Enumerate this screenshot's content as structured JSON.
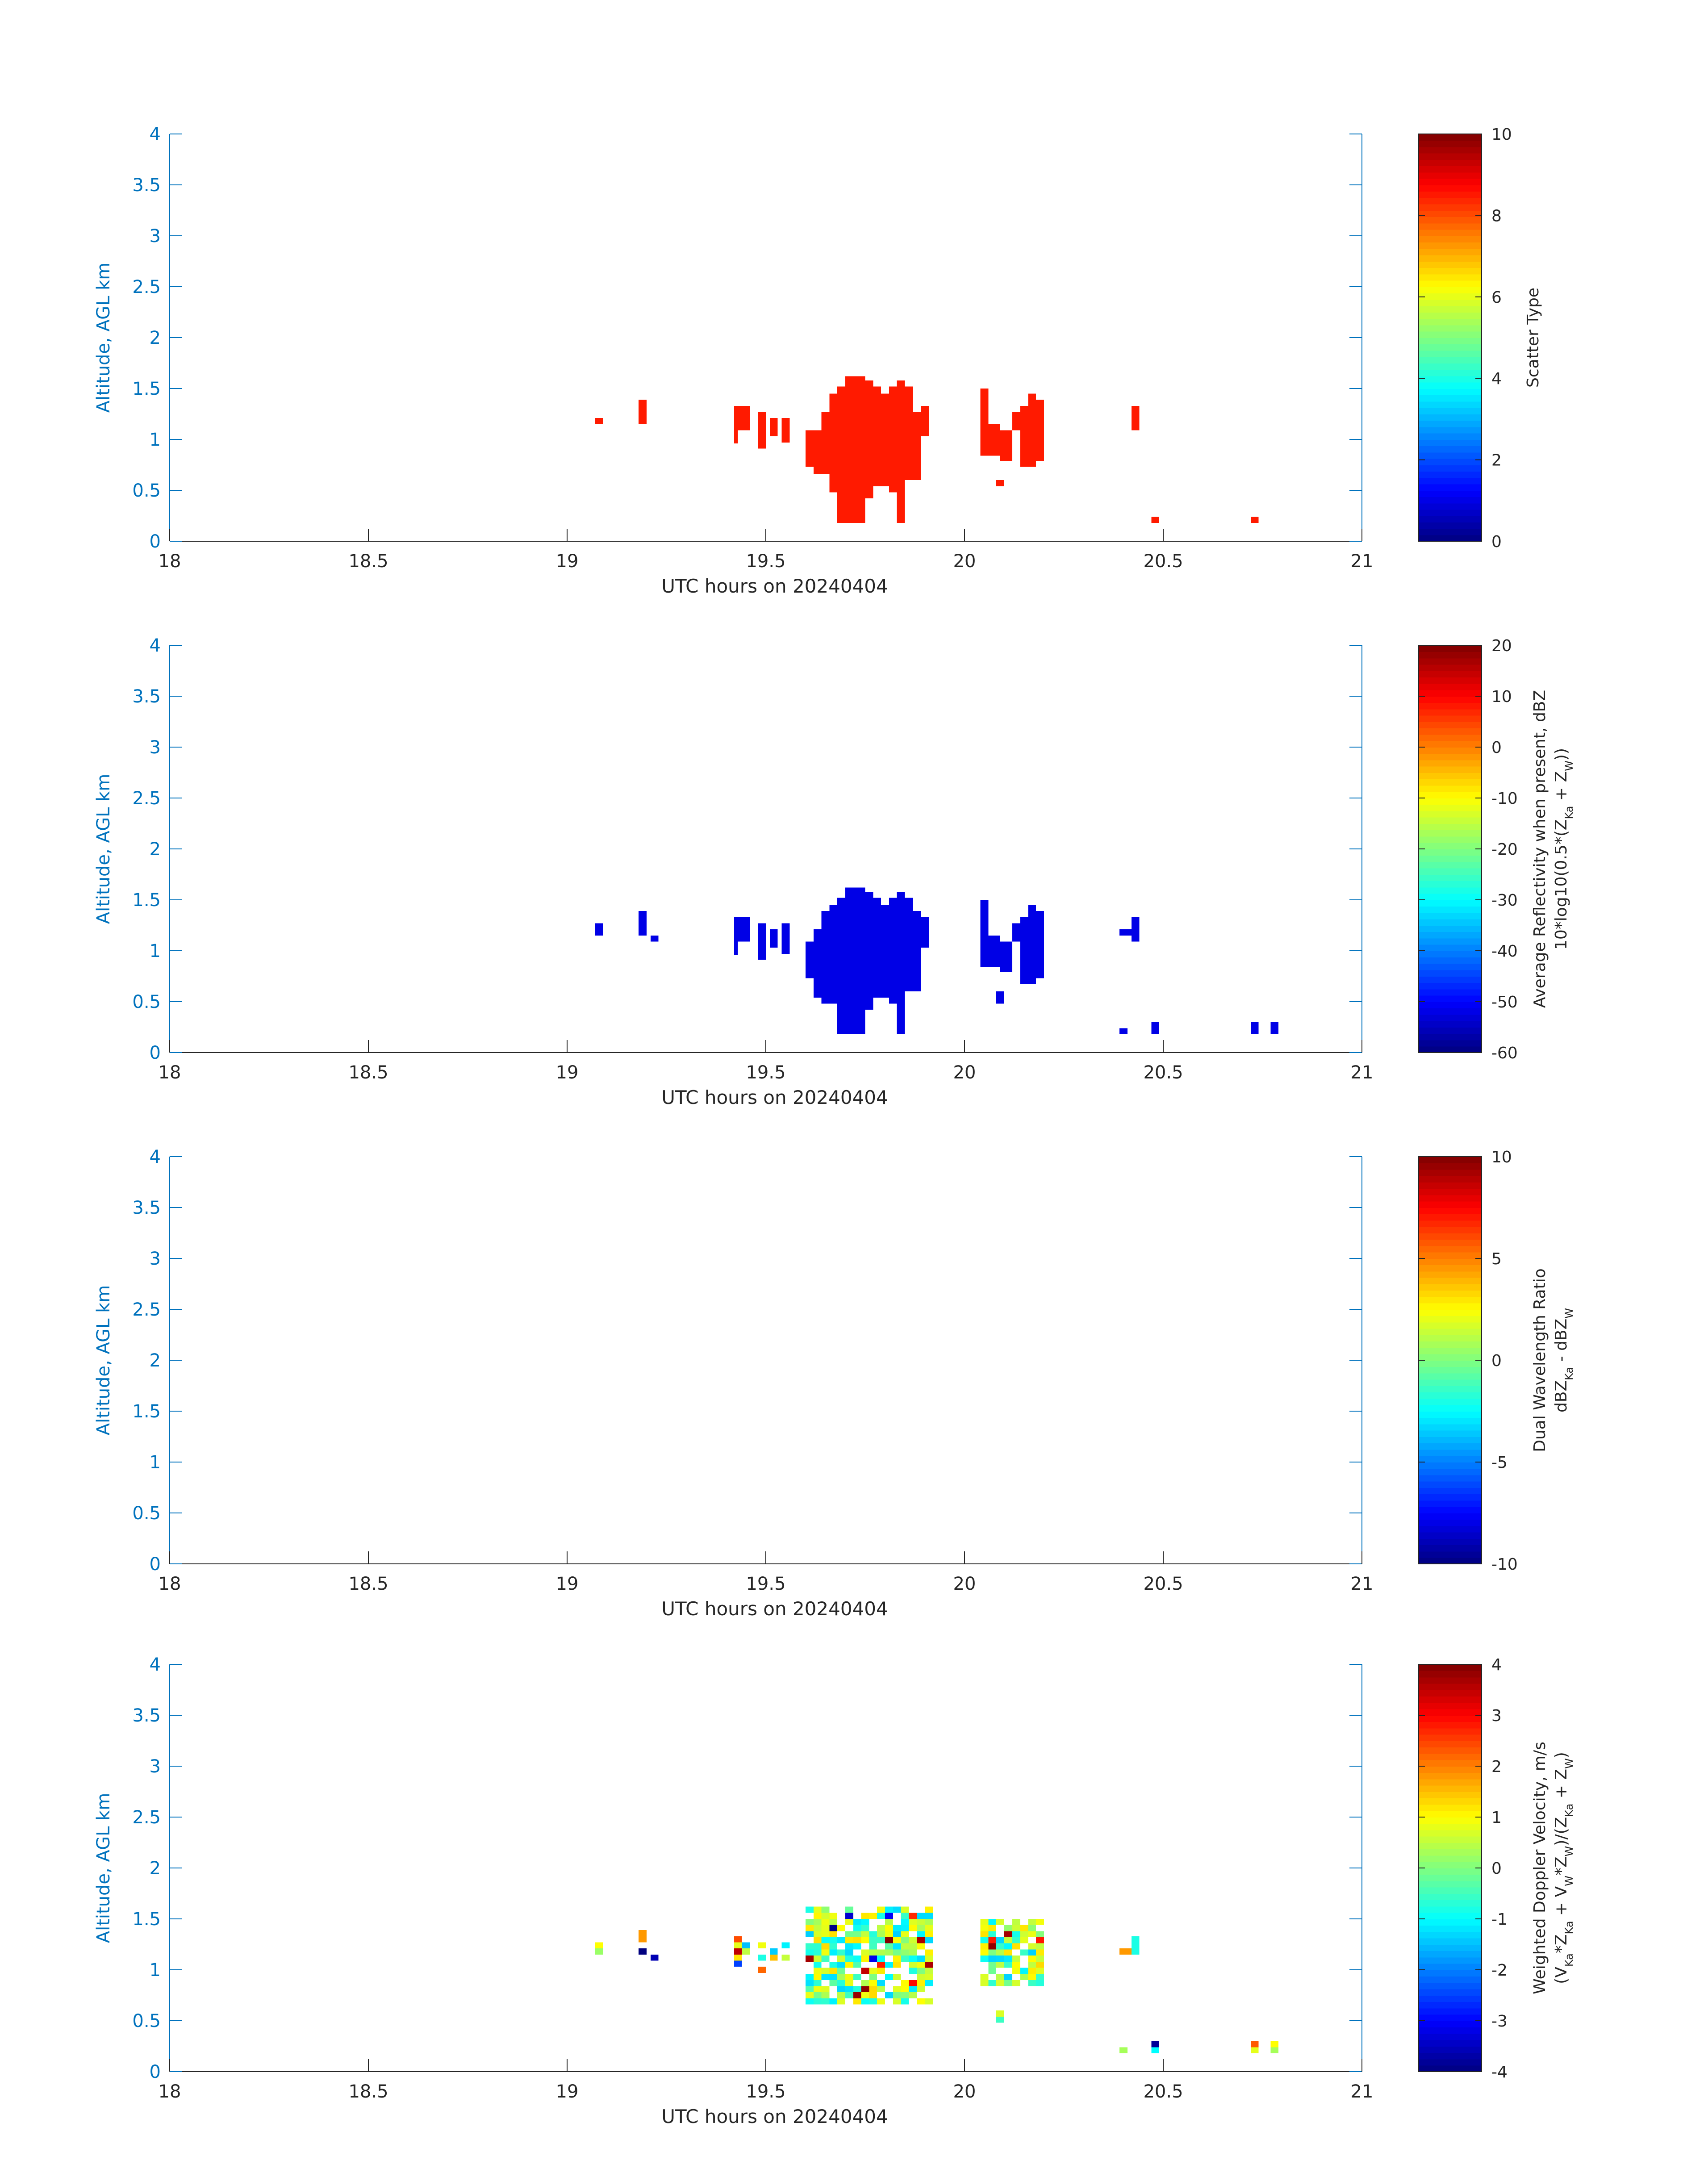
{
  "chart_data": [
    {
      "type": "heatmap",
      "xlabel": "UTC hours on 20240404",
      "ylabel": "Altitude, AGL km",
      "xlim": [
        18,
        21
      ],
      "ylim": [
        0,
        4
      ],
      "xticks": [
        "18",
        "18.5",
        "19",
        "19.5",
        "20",
        "20.5",
        "21"
      ],
      "yticks": [
        "0",
        "0.5",
        "1",
        "1.5",
        "2",
        "2.5",
        "3",
        "3.5",
        "4"
      ],
      "colorbar": {
        "label": "Scatter Type",
        "label2": "",
        "clim": [
          0,
          10
        ],
        "ticks": [
          "0",
          "2",
          "4",
          "6",
          "8",
          "10"
        ],
        "colormap": "jet"
      },
      "cells_value": 8.5,
      "cells": [
        [
          19.07,
          1.15,
          19.09,
          1.21
        ],
        [
          19.18,
          1.15,
          19.2,
          1.39
        ],
        [
          19.42,
          0.96,
          19.43,
          1.33
        ],
        [
          19.43,
          1.09,
          19.46,
          1.33
        ],
        [
          19.48,
          0.91,
          19.5,
          1.27
        ],
        [
          19.51,
          1.03,
          19.53,
          1.21
        ],
        [
          19.54,
          0.97,
          19.56,
          1.21
        ],
        [
          19.6,
          0.73,
          19.62,
          1.09
        ],
        [
          19.62,
          0.66,
          19.64,
          1.09
        ],
        [
          19.64,
          0.66,
          19.66,
          1.27
        ],
        [
          19.66,
          0.48,
          19.68,
          1.45
        ],
        [
          19.68,
          0.18,
          19.7,
          1.52
        ],
        [
          19.7,
          0.18,
          19.73,
          1.62
        ],
        [
          19.73,
          0.18,
          19.75,
          1.62
        ],
        [
          19.75,
          0.42,
          19.77,
          1.58
        ],
        [
          19.77,
          0.54,
          19.79,
          1.52
        ],
        [
          19.79,
          0.54,
          19.81,
          1.45
        ],
        [
          19.81,
          0.48,
          19.83,
          1.52
        ],
        [
          19.83,
          0.18,
          19.85,
          1.58
        ],
        [
          19.85,
          0.6,
          19.87,
          1.52
        ],
        [
          19.87,
          0.6,
          19.89,
          1.27
        ],
        [
          19.89,
          1.03,
          19.91,
          1.33
        ],
        [
          20.04,
          0.84,
          20.06,
          1.5
        ],
        [
          20.06,
          0.84,
          20.09,
          1.15
        ],
        [
          20.09,
          0.79,
          20.12,
          1.09
        ],
        [
          20.08,
          0.54,
          20.1,
          0.6
        ],
        [
          20.12,
          1.09,
          20.14,
          1.27
        ],
        [
          20.14,
          0.73,
          20.16,
          1.33
        ],
        [
          20.16,
          0.73,
          20.18,
          1.45
        ],
        [
          20.18,
          0.79,
          20.2,
          1.39
        ],
        [
          20.42,
          1.09,
          20.44,
          1.33
        ],
        [
          20.47,
          0.18,
          20.49,
          0.24
        ],
        [
          20.72,
          0.18,
          20.74,
          0.24
        ]
      ]
    },
    {
      "type": "heatmap",
      "xlabel": "UTC hours on 20240404",
      "ylabel": "Altitude, AGL km",
      "xlim": [
        18,
        21
      ],
      "ylim": [
        0,
        4
      ],
      "xticks": [
        "18",
        "18.5",
        "19",
        "19.5",
        "20",
        "20.5",
        "21"
      ],
      "yticks": [
        "0",
        "0.5",
        "1",
        "1.5",
        "2",
        "2.5",
        "3",
        "3.5",
        "4"
      ],
      "colorbar": {
        "label": "Average Reflectivity when present, dBZ",
        "label2": "10*log10(0.5*(Z_Ka + Z_W))",
        "clim": [
          -60,
          20
        ],
        "ticks": [
          "-60",
          "-50",
          "-40",
          "-30",
          "-20",
          "-10",
          "0",
          "10",
          "20"
        ],
        "colormap": "jet"
      },
      "cells_value": -52,
      "cells": [
        [
          19.07,
          1.15,
          19.09,
          1.27
        ],
        [
          19.18,
          1.15,
          19.2,
          1.39
        ],
        [
          19.21,
          1.09,
          19.23,
          1.15
        ],
        [
          19.42,
          0.96,
          19.43,
          1.33
        ],
        [
          19.43,
          1.09,
          19.46,
          1.33
        ],
        [
          19.48,
          0.91,
          19.5,
          1.27
        ],
        [
          19.51,
          1.03,
          19.53,
          1.21
        ],
        [
          19.54,
          0.97,
          19.56,
          1.27
        ],
        [
          19.6,
          0.73,
          19.62,
          1.09
        ],
        [
          19.62,
          0.54,
          19.64,
          1.21
        ],
        [
          19.64,
          0.48,
          19.66,
          1.39
        ],
        [
          19.66,
          0.48,
          19.68,
          1.45
        ],
        [
          19.68,
          0.18,
          19.7,
          1.52
        ],
        [
          19.7,
          0.18,
          19.73,
          1.62
        ],
        [
          19.73,
          0.18,
          19.75,
          1.62
        ],
        [
          19.75,
          0.42,
          19.77,
          1.58
        ],
        [
          19.77,
          0.54,
          19.79,
          1.52
        ],
        [
          19.79,
          0.54,
          19.81,
          1.45
        ],
        [
          19.81,
          0.48,
          19.83,
          1.52
        ],
        [
          19.83,
          0.18,
          19.85,
          1.58
        ],
        [
          19.85,
          0.6,
          19.87,
          1.52
        ],
        [
          19.87,
          0.6,
          19.89,
          1.39
        ],
        [
          19.89,
          1.03,
          19.91,
          1.33
        ],
        [
          20.04,
          0.84,
          20.06,
          1.5
        ],
        [
          20.06,
          0.84,
          20.09,
          1.15
        ],
        [
          20.09,
          0.79,
          20.12,
          1.09
        ],
        [
          20.08,
          0.48,
          20.1,
          0.6
        ],
        [
          20.12,
          1.09,
          20.14,
          1.27
        ],
        [
          20.14,
          0.67,
          20.16,
          1.33
        ],
        [
          20.16,
          0.67,
          20.18,
          1.45
        ],
        [
          20.18,
          0.73,
          20.2,
          1.39
        ],
        [
          20.39,
          1.15,
          20.42,
          1.21
        ],
        [
          20.42,
          1.09,
          20.44,
          1.33
        ],
        [
          20.39,
          0.18,
          20.41,
          0.24
        ],
        [
          20.47,
          0.18,
          20.49,
          0.3
        ],
        [
          20.72,
          0.18,
          20.74,
          0.3
        ],
        [
          20.77,
          0.18,
          20.79,
          0.3
        ]
      ]
    },
    {
      "type": "heatmap",
      "xlabel": "UTC hours on 20240404",
      "ylabel": "Altitude, AGL km",
      "xlim": [
        18,
        21
      ],
      "ylim": [
        0,
        4
      ],
      "xticks": [
        "18",
        "18.5",
        "19",
        "19.5",
        "20",
        "20.5",
        "21"
      ],
      "yticks": [
        "0",
        "0.5",
        "1",
        "1.5",
        "2",
        "2.5",
        "3",
        "3.5",
        "4"
      ],
      "colorbar": {
        "label": "Dual Wavelength Ratio",
        "label2": "dBZ_Ka - dBZ_W",
        "clim": [
          -10,
          10
        ],
        "ticks": [
          "-10",
          "-5",
          "0",
          "5",
          "10"
        ],
        "colormap": "jet"
      },
      "cells_value": 0,
      "cells": []
    },
    {
      "type": "heatmap",
      "xlabel": "UTC hours on 20240404",
      "ylabel": "Altitude, AGL km",
      "xlim": [
        18,
        21
      ],
      "ylim": [
        0,
        4
      ],
      "xticks": [
        "18",
        "18.5",
        "19",
        "19.5",
        "20",
        "20.5",
        "21"
      ],
      "yticks": [
        "0",
        "0.5",
        "1",
        "1.5",
        "2",
        "2.5",
        "3",
        "3.5",
        "4"
      ],
      "colorbar": {
        "label": "Weighted Doppler Velocity, m/s",
        "label2": "(V_Ka*Z_Ka + V_W*Z_W)/(Z_Ka + Z_W)",
        "clim": [
          -4,
          4
        ],
        "ticks": [
          "-4",
          "-3",
          "-2",
          "-1",
          "0",
          "1",
          "2",
          "3",
          "4"
        ],
        "colormap": "jet"
      },
      "cells_value": null,
      "cells_note": "",
      "cells": [
        [
          19.07,
          1.21,
          19.09,
          1.27,
          1.0
        ],
        [
          19.07,
          1.15,
          19.09,
          1.21,
          0.2
        ],
        [
          19.18,
          1.27,
          19.2,
          1.39,
          1.8
        ],
        [
          19.18,
          1.15,
          19.2,
          1.21,
          -4.0
        ],
        [
          19.21,
          1.09,
          19.23,
          1.15,
          -3.6
        ],
        [
          19.42,
          1.27,
          19.44,
          1.33,
          2.4
        ],
        [
          19.42,
          1.21,
          19.44,
          1.27,
          0.8
        ],
        [
          19.42,
          1.15,
          19.44,
          1.21,
          3.5
        ],
        [
          19.42,
          1.09,
          19.44,
          1.15,
          1.2
        ],
        [
          19.42,
          1.03,
          19.44,
          1.09,
          -2.5
        ],
        [
          19.44,
          1.21,
          19.46,
          1.27,
          -1.5
        ],
        [
          19.44,
          1.15,
          19.46,
          1.21,
          0.5
        ],
        [
          19.48,
          1.21,
          19.5,
          1.27,
          0.9
        ],
        [
          19.48,
          1.09,
          19.5,
          1.15,
          -0.8
        ],
        [
          19.48,
          0.97,
          19.5,
          1.03,
          2.2
        ],
        [
          19.51,
          1.15,
          19.53,
          1.21,
          -1.4
        ],
        [
          19.51,
          1.09,
          19.53,
          1.15,
          1.5
        ],
        [
          19.54,
          1.09,
          19.56,
          1.15,
          2.6
        ]
      ],
      "cell_regions": [
        [
          19.6,
          0.66,
          19.91,
          1.62
        ],
        [
          19.54,
          1.09,
          19.56,
          1.27
        ],
        [
          20.04,
          0.84,
          20.2,
          1.5
        ],
        [
          20.08,
          0.48,
          20.1,
          0.6
        ]
      ],
      "isolated": [
        [
          20.39,
          0.18,
          20.41,
          0.24,
          0.3
        ],
        [
          20.42,
          1.15,
          20.44,
          1.33,
          -0.8
        ],
        [
          20.39,
          1.15,
          20.42,
          1.21,
          1.8
        ],
        [
          20.47,
          0.24,
          20.49,
          0.3,
          -3.8
        ],
        [
          20.47,
          0.18,
          20.49,
          0.24,
          -1.0
        ],
        [
          20.72,
          0.24,
          20.74,
          0.3,
          2.3
        ],
        [
          20.72,
          0.18,
          20.74,
          0.24,
          0.8
        ],
        [
          20.77,
          0.24,
          20.79,
          0.3,
          1.0
        ],
        [
          20.77,
          0.18,
          20.79,
          0.24,
          0.3
        ]
      ]
    }
  ]
}
